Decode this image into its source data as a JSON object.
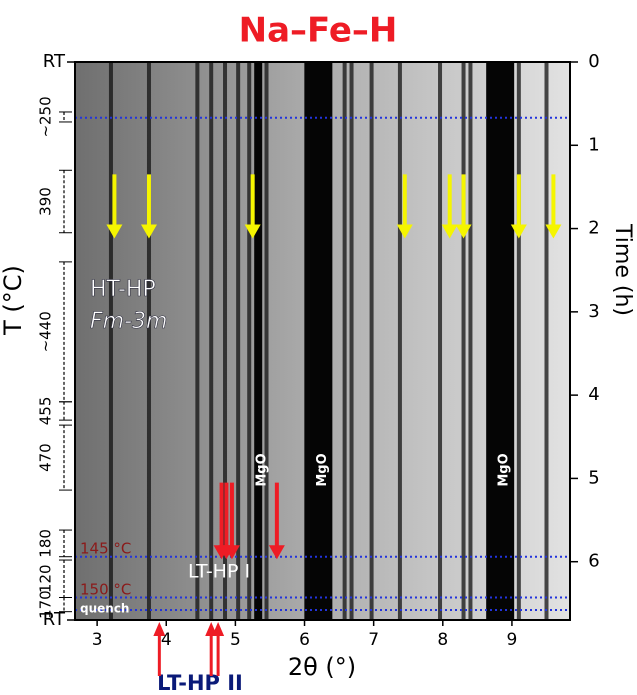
{
  "chart_data": {
    "type": "image",
    "title": "Na–Fe–H",
    "title_color": "#ee1c25",
    "xlabel": "2θ (°)",
    "ylabel": "T (°C)",
    "y2label": "Time (h)",
    "xlim": [
      2.68,
      9.84
    ],
    "xticks": [
      3,
      4,
      5,
      6,
      7,
      8,
      9
    ],
    "y2lim": [
      0,
      6.7
    ],
    "y2ticks": [
      0,
      1,
      2,
      3,
      4,
      5,
      6
    ],
    "temperature_ends": [
      {
        "label": "RT",
        "time": 0
      },
      {
        "label": "RT",
        "time": 6.7
      }
    ],
    "temperature_segments": [
      {
        "label": "~250",
        "start": 0.6,
        "end": 0.72
      },
      {
        "label": "390",
        "start": 1.3,
        "end": 2.05
      },
      {
        "label": "~440",
        "start": 2.4,
        "end": 4.08
      },
      {
        "label": "455",
        "start": 4.08,
        "end": 4.3
      },
      {
        "label": "470",
        "start": 4.36,
        "end": 5.14
      },
      {
        "label": "180",
        "start": 5.62,
        "end": 5.94
      },
      {
        "label": "120",
        "start": 5.98,
        "end": 6.43
      },
      {
        "label": "170",
        "start": 6.43,
        "end": 6.6
      }
    ],
    "lines": [
      3.2,
      3.75,
      4.45,
      4.65,
      4.85,
      5.04,
      5.2,
      5.45,
      6.58,
      6.68,
      6.97,
      7.38,
      7.96,
      8.3,
      8.4,
      9.1,
      9.5
    ],
    "mgo": {
      "label": "MgO",
      "x": [
        5.33,
        6.2,
        8.83
      ]
    },
    "yellow_arrows": [
      3.25,
      3.75,
      5.25,
      7.45,
      8.1,
      8.3,
      9.1,
      9.6
    ],
    "red_arrows": [
      4.8,
      4.87,
      4.95,
      5.6
    ],
    "bottom_red_arrows": [
      3.9,
      4.65,
      4.75
    ],
    "dotted_lines": [
      0.67,
      5.94,
      6.43,
      6.58
    ],
    "phases": {
      "ht": "HT-HP",
      "ht_group": "Fm-3m",
      "lt1": "LT-HP I",
      "lt2": "LT-HP II"
    },
    "temperature_notes": {
      "t145": "145 °C",
      "t150": "150 °C",
      "quench": "quench"
    }
  }
}
